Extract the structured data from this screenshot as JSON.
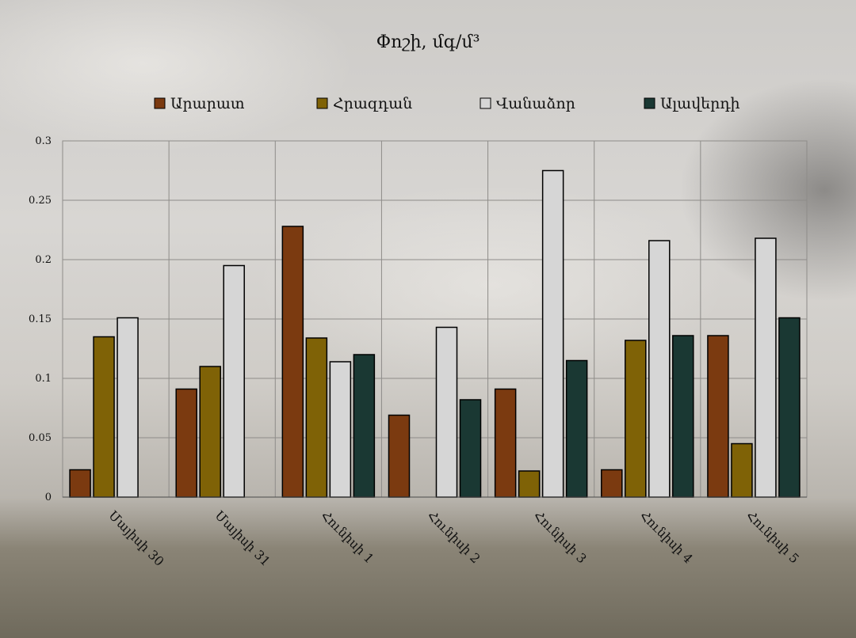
{
  "chart_data": {
    "type": "bar",
    "title": "Փոշի, մգ/մ³",
    "categories": [
      "Մայիսի 30",
      "Մայիսի 31",
      "Հունիսի 1",
      "Հունիսի 2",
      "Հունիսի 3",
      "Հունիսի 4",
      "Հունիսի 5"
    ],
    "series": [
      {
        "name": "Արարատ",
        "color": "#7b3a10",
        "values": [
          0.023,
          0.091,
          0.228,
          0.069,
          0.091,
          0.023,
          0.136
        ]
      },
      {
        "name": "Հրազդան",
        "color": "#7f6206",
        "values": [
          0.135,
          0.11,
          0.134,
          0,
          0.022,
          0.132,
          0.045
        ]
      },
      {
        "name": "Վանաձոր",
        "color": "#d6d6d6",
        "values": [
          0.151,
          0.195,
          0.114,
          0.143,
          0.275,
          0.216,
          0.218
        ]
      },
      {
        "name": "Ալավերդի",
        "color": "#1a3833",
        "values": [
          0,
          0,
          0.12,
          0.082,
          0.115,
          0.136,
          0.151
        ]
      }
    ],
    "yticks": [
      "0",
      "0.05",
      "0.1",
      "0.15",
      "0.2",
      "0.25",
      "0.3"
    ],
    "ylim": [
      0,
      0.3
    ],
    "xlabel": "",
    "ylabel": "",
    "grid": true,
    "legend_position": "top"
  }
}
